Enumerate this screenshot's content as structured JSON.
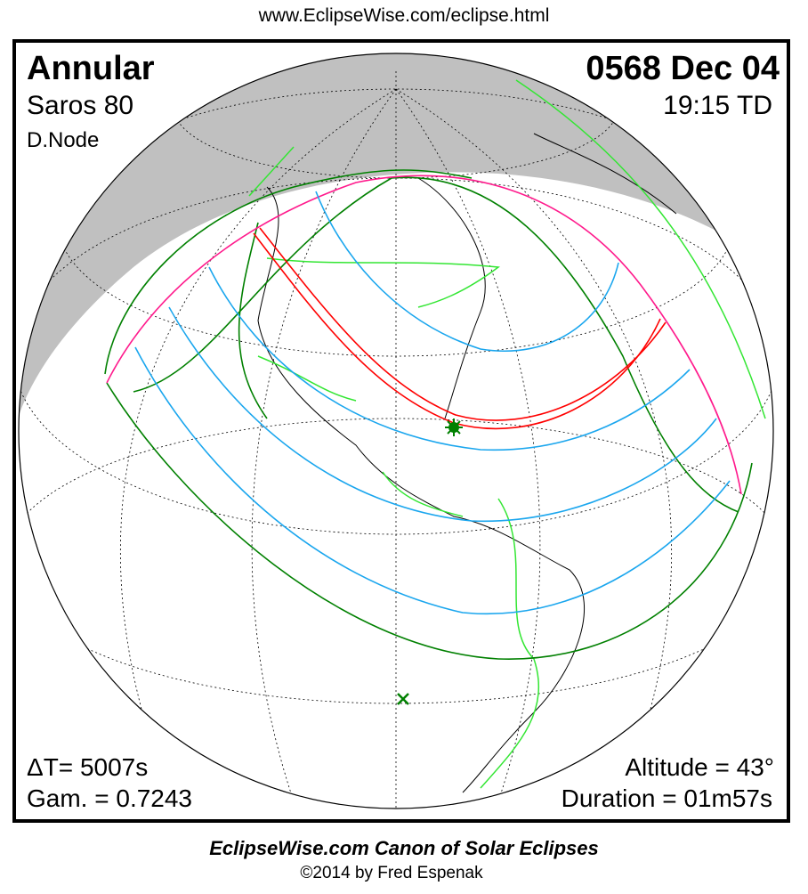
{
  "header": {
    "url": "www.EclipseWise.com/eclipse.html"
  },
  "eclipse": {
    "type": "Annular",
    "date": "0568 Dec 04",
    "saros": "Saros  80",
    "time": "19:15 TD",
    "node": "D.Node",
    "delta_t": "ΔT=   5007s",
    "gamma": "Gam. = 0.7243",
    "altitude": "Altitude = 43°",
    "duration": "Duration = 01m57s"
  },
  "footer": {
    "canon": "EclipseWise.com Canon of Solar Eclipses",
    "copyright": "©2014 by Fred Espenak"
  },
  "colors": {
    "night": "#c0c0c0",
    "central_path": "#ff0000",
    "penumbral_limits": "#ff1a8c",
    "magnitude_curves": "#1aa6ee",
    "rise_set_curves": "#008000",
    "borders": "#33e633"
  },
  "icons": {
    "greatest_eclipse": "star-icon",
    "sub_solar_point": "x-mark-icon"
  }
}
